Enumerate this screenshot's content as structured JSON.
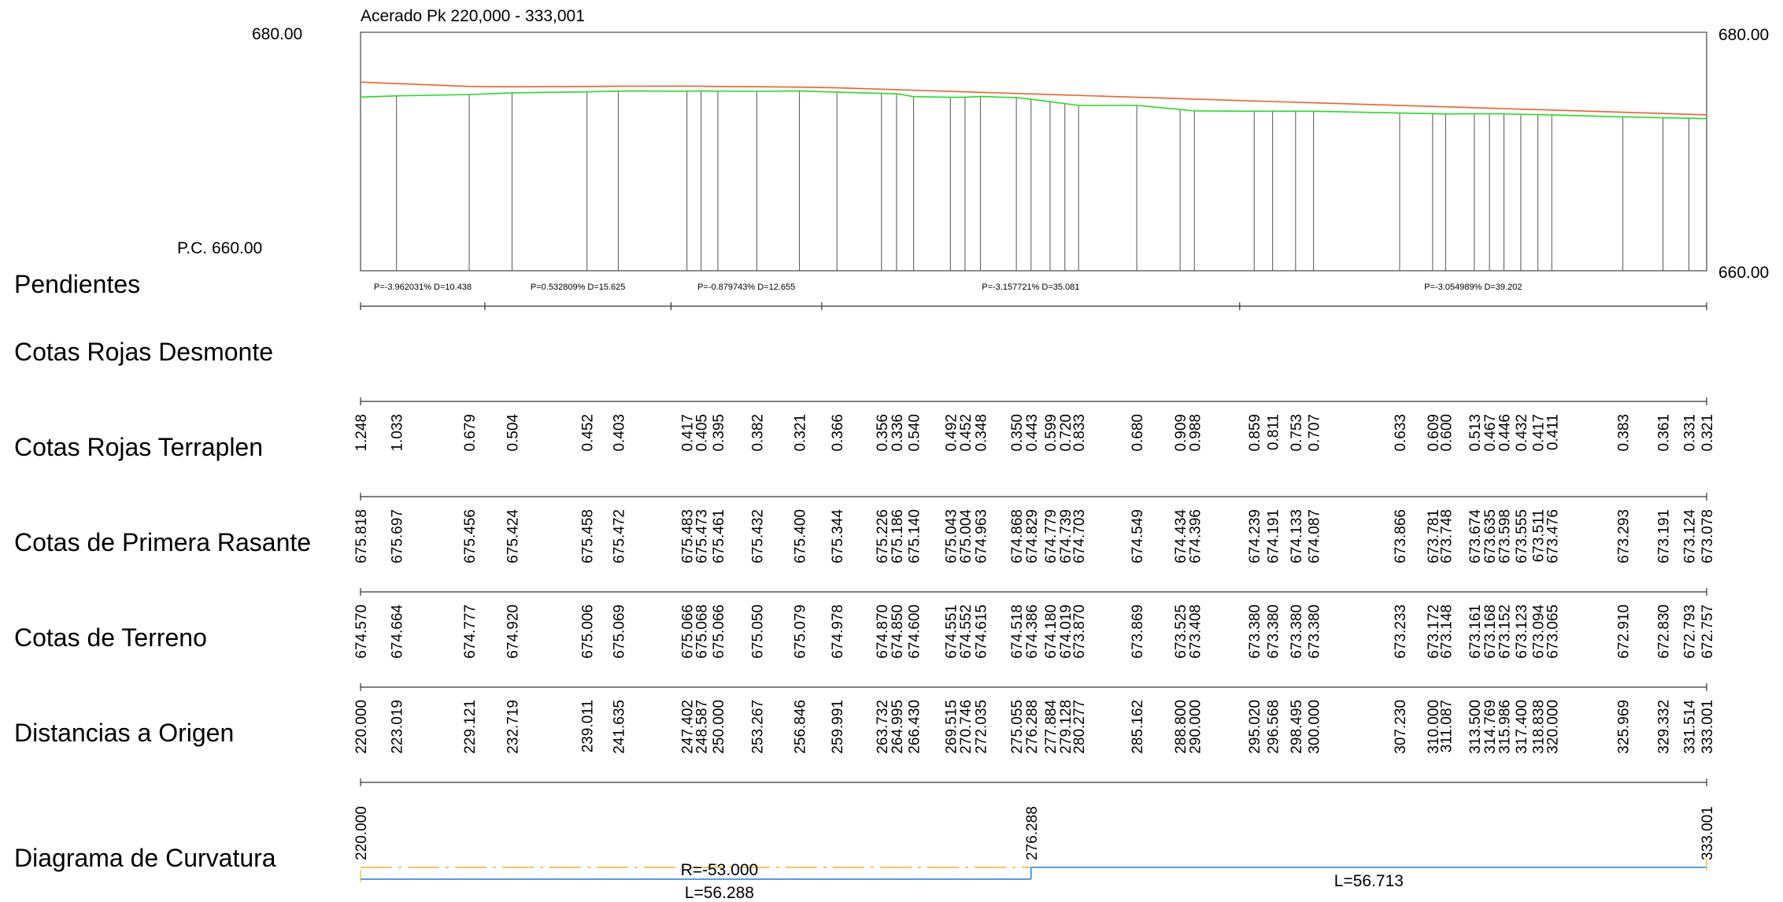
{
  "title": "Acerado Pk 220,000 - 333,001",
  "axis": {
    "left_top": "680.00",
    "left_bottom": "P.C. 660.00",
    "right_top": "680.00",
    "right_bottom": "660.00",
    "y_min": 660,
    "y_max": 680
  },
  "row_labels": {
    "pendientes": "Pendientes",
    "desmonte": "Cotas Rojas Desmonte",
    "terraplen": "Cotas Rojas Terraplen",
    "rasante": "Cotas de Primera Rasante",
    "terreno": "Cotas de Terreno",
    "distancias": "Distancias a Origen",
    "curvatura": "Diagrama de Curvatura"
  },
  "colors": {
    "rasante_line": "#f0602a",
    "terrain_line": "#22dd22",
    "radius_line": "#f2b230",
    "length_line": "#3a8ee6",
    "grid": "#555555"
  },
  "chart_data": {
    "type": "line",
    "stations": [
      {
        "d": "220.000",
        "t": "674.570",
        "r": "675.818",
        "c": "1.248"
      },
      {
        "d": "223.019",
        "t": "674.664",
        "r": "675.697",
        "c": "1.033"
      },
      {
        "d": "229.121",
        "t": "674.777",
        "r": "675.456",
        "c": "0.679"
      },
      {
        "d": "232.719",
        "t": "674.920",
        "r": "675.424",
        "c": "0.504"
      },
      {
        "d": "239.011",
        "t": "675.006",
        "r": "675.458",
        "c": "0.452"
      },
      {
        "d": "241.635",
        "t": "675.069",
        "r": "675.472",
        "c": "0.403"
      },
      {
        "d": "247.402",
        "t": "675.066",
        "r": "675.483",
        "c": "0.417"
      },
      {
        "d": "248.587",
        "t": "675.068",
        "r": "675.473",
        "c": "0.405"
      },
      {
        "d": "250.000",
        "t": "675.066",
        "r": "675.461",
        "c": "0.395"
      },
      {
        "d": "253.267",
        "t": "675.050",
        "r": "675.432",
        "c": "0.382"
      },
      {
        "d": "256.846",
        "t": "675.079",
        "r": "675.400",
        "c": "0.321"
      },
      {
        "d": "259.991",
        "t": "674.978",
        "r": "675.344",
        "c": "0.366"
      },
      {
        "d": "263.732",
        "t": "674.870",
        "r": "675.226",
        "c": "0.356"
      },
      {
        "d": "264.995",
        "t": "674.850",
        "r": "675.186",
        "c": "0.336"
      },
      {
        "d": "266.430",
        "t": "674.600",
        "r": "675.140",
        "c": "0.540"
      },
      {
        "d": "269.515",
        "t": "674.551",
        "r": "675.043",
        "c": "0.492"
      },
      {
        "d": "270.746",
        "t": "674.552",
        "r": "675.004",
        "c": "0.452"
      },
      {
        "d": "272.035",
        "t": "674.615",
        "r": "674.963",
        "c": "0.348"
      },
      {
        "d": "275.055",
        "t": "674.518",
        "r": "674.868",
        "c": "0.350"
      },
      {
        "d": "276.288",
        "t": "674.386",
        "r": "674.829",
        "c": "0.443"
      },
      {
        "d": "277.884",
        "t": "674.180",
        "r": "674.779",
        "c": "0.599"
      },
      {
        "d": "279.128",
        "t": "674.019",
        "r": "674.739",
        "c": "0.720"
      },
      {
        "d": "280.277",
        "t": "673.870",
        "r": "674.703",
        "c": "0.833"
      },
      {
        "d": "285.162",
        "t": "673.869",
        "r": "674.549",
        "c": "0.680"
      },
      {
        "d": "288.800",
        "t": "673.525",
        "r": "674.434",
        "c": "0.909"
      },
      {
        "d": "290.000",
        "t": "673.408",
        "r": "674.396",
        "c": "0.988"
      },
      {
        "d": "295.020",
        "t": "673.380",
        "r": "674.239",
        "c": "0.859"
      },
      {
        "d": "296.568",
        "t": "673.380",
        "r": "674.191",
        "c": "0.811"
      },
      {
        "d": "298.495",
        "t": "673.380",
        "r": "674.133",
        "c": "0.753"
      },
      {
        "d": "300.000",
        "t": "673.380",
        "r": "674.087",
        "c": "0.707"
      },
      {
        "d": "307.230",
        "t": "673.233",
        "r": "673.866",
        "c": "0.633"
      },
      {
        "d": "310.000",
        "t": "673.172",
        "r": "673.781",
        "c": "0.609"
      },
      {
        "d": "311.087",
        "t": "673.148",
        "r": "673.748",
        "c": "0.600"
      },
      {
        "d": "313.500",
        "t": "673.161",
        "r": "673.674",
        "c": "0.513"
      },
      {
        "d": "314.769",
        "t": "673.168",
        "r": "673.635",
        "c": "0.467"
      },
      {
        "d": "315.986",
        "t": "673.152",
        "r": "673.598",
        "c": "0.446"
      },
      {
        "d": "317.400",
        "t": "673.123",
        "r": "673.555",
        "c": "0.432"
      },
      {
        "d": "318.838",
        "t": "673.094",
        "r": "673.511",
        "c": "0.417"
      },
      {
        "d": "320.000",
        "t": "673.065",
        "r": "673.476",
        "c": "0.411"
      },
      {
        "d": "325.969",
        "t": "672.910",
        "r": "673.293",
        "c": "0.383"
      },
      {
        "d": "329.332",
        "t": "672.830",
        "r": "673.191",
        "c": "0.361"
      },
      {
        "d": "331.514",
        "t": "672.793",
        "r": "673.124",
        "c": "0.331"
      },
      {
        "d": "333.001",
        "t": "672.757",
        "r": "673.078",
        "c": "0.321"
      }
    ],
    "x_range": [
      220.0,
      333.001
    ],
    "ylim": [
      660,
      680
    ],
    "slopes": [
      {
        "start": 220.0,
        "end": 230.438,
        "label": "P=-3.962031% D=10.438"
      },
      {
        "start": 230.438,
        "end": 246.063,
        "label": "P=0.532809% D=15.625"
      },
      {
        "start": 246.063,
        "end": 258.718,
        "label": "P=-0.879743% D=12.655"
      },
      {
        "start": 258.718,
        "end": 293.799,
        "label": "P=-3.157721% D=35.081"
      },
      {
        "start": 293.799,
        "end": 333.001,
        "label": "P=-3.054989% D=39.202"
      }
    ],
    "curvature": {
      "ticks": [
        "220.000",
        "276.288",
        "333.001"
      ],
      "segments": [
        {
          "start": 220.0,
          "end": 276.288,
          "radius_label": "R=-53.000",
          "length_label": "L=56.288"
        },
        {
          "start": 276.288,
          "end": 333.001,
          "radius_label": "",
          "length_label": "L=56.713"
        }
      ]
    }
  }
}
